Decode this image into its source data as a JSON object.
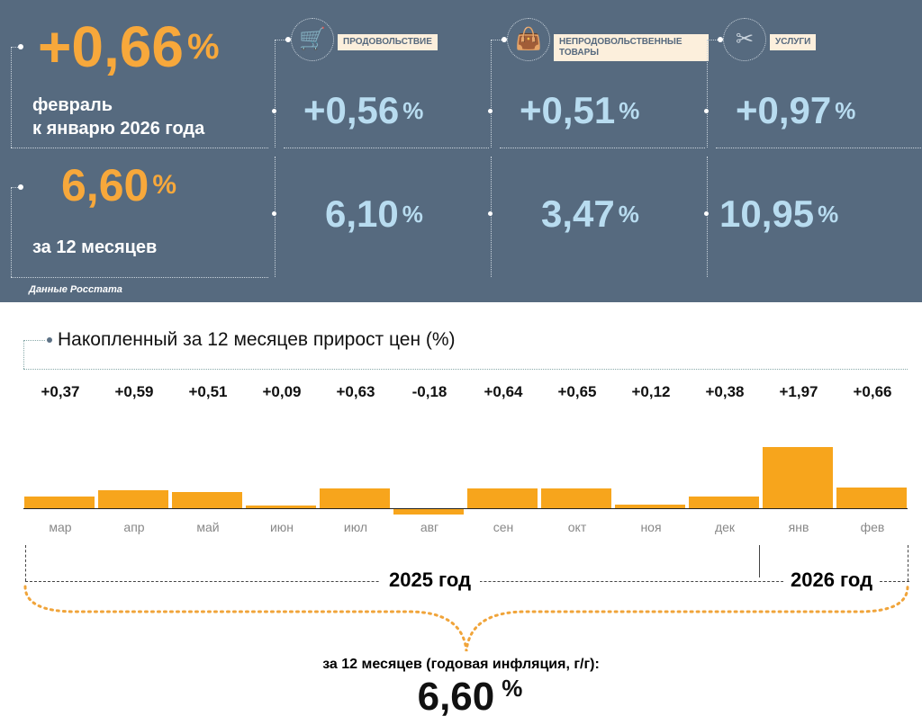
{
  "summary": {
    "monthly": {
      "value": "+0,66",
      "unit": "%",
      "caption_line1": "февраль",
      "caption_line2": "к январю 2026 года"
    },
    "annual": {
      "value": "6,60",
      "unit": "%",
      "caption": "за 12 месяцев"
    },
    "source": "Данные Росстата"
  },
  "categories": [
    {
      "icon": "shopping-cart-icon",
      "label": "ПРОДОВОЛЬСТВИЕ",
      "monthly": "+0,56",
      "annual": "6,10",
      "unit": "%"
    },
    {
      "icon": "clothes-bag-icon",
      "label": "НЕПРОДОВОЛЬСТВЕННЫЕ ТОВАРЫ",
      "monthly": "+0,51",
      "annual": "3,47",
      "unit": "%"
    },
    {
      "icon": "scissors-comb-icon",
      "label": "УСЛУГИ",
      "monthly": "+0,97",
      "annual": "10,95",
      "unit": "%"
    }
  ],
  "chart_data": {
    "type": "bar",
    "title": "Накопленный за 12 месяцев прирост цен (%)",
    "categories": [
      "мар",
      "апр",
      "май",
      "июн",
      "июл",
      "авг",
      "сен",
      "окт",
      "ноя",
      "дек",
      "янв",
      "фев"
    ],
    "values": [
      0.37,
      0.59,
      0.51,
      0.09,
      0.63,
      -0.18,
      0.64,
      0.65,
      0.12,
      0.38,
      1.97,
      0.66
    ],
    "value_labels": [
      "+0,37",
      "+0,59",
      "+0,51",
      "+0,09",
      "+0,63",
      "-0,18",
      "+0,64",
      "+0,65",
      "+0,12",
      "+0,38",
      "+1,97",
      "+0,66"
    ],
    "year_labels": [
      "2025 год",
      "2026 год"
    ],
    "bar_color": "#f7a51c",
    "footer_caption": "за 12 месяцев (годовая инфляция, г/г):",
    "footer_value": "6,60",
    "footer_unit": "%"
  }
}
